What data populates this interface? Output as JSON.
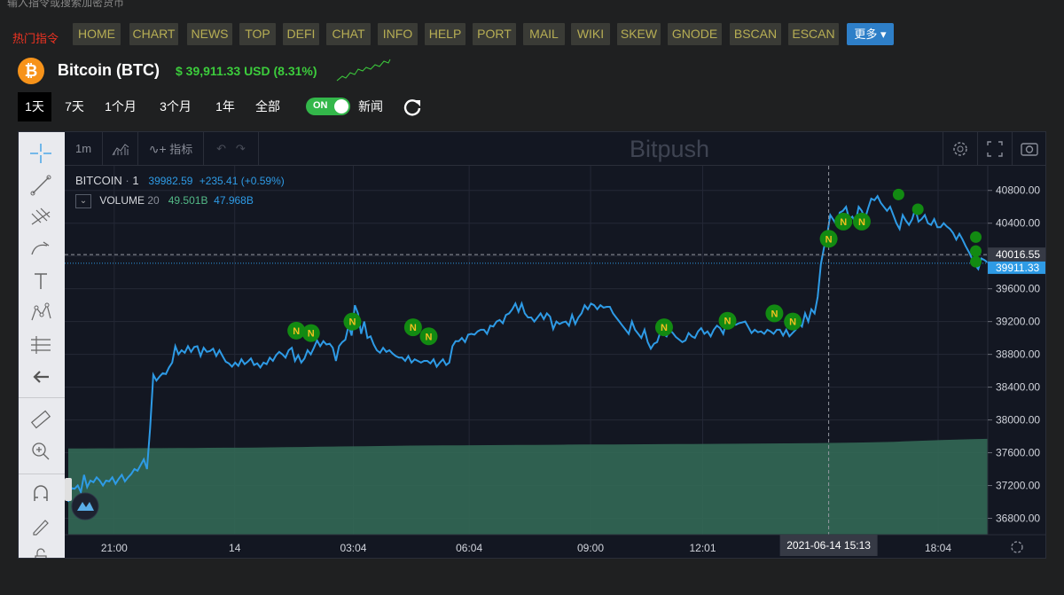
{
  "header": {
    "search_hint": "输入指令或搜索加密货币",
    "hot_label": "热门指令",
    "nav_items": [
      "HOME",
      "CHART",
      "NEWS",
      "TOP",
      "DEFI",
      "CHAT",
      "INFO",
      "HELP",
      "PORT",
      "MAIL",
      "WIKI",
      "SKEW",
      "GNODE",
      "BSCAN",
      "ESCAN"
    ],
    "more_label": "更多 ▾"
  },
  "coin": {
    "logo": "₿",
    "name": "Bitcoin (BTC)",
    "price_line": "$ 39,911.33 USD (8.31%)",
    "colors": {
      "up": "#3ccc3c",
      "logo": "#f7931a"
    }
  },
  "ranges": {
    "items": [
      "1天",
      "7天",
      "1个月",
      "3个月",
      "1年",
      "全部"
    ],
    "active_index": 0,
    "toggle_label": "ON",
    "toggle_state": "on",
    "news_label": "新闻"
  },
  "chart_toolbar": {
    "interval": "1m",
    "indicators_label": "指标",
    "watermark": "Bitpush"
  },
  "legend": {
    "symbol": "BITCOIN",
    "interval": "1",
    "last": "39982.59",
    "change": "+235.41 (+0.59%)",
    "volume_label": "VOLUME",
    "volume_length": "20",
    "volume_value": "49.501B",
    "volume_ma": "47.968B"
  },
  "price_labels": {
    "crosshair_price": "40016.55",
    "last_price": "39911.33",
    "crosshair_time": "2021-06-14    15:13"
  },
  "chart_data": {
    "type": "line",
    "title": "",
    "xlabel": "",
    "ylabel": "",
    "ylim": [
      36600,
      41100
    ],
    "yticks": [
      36800,
      37200,
      37600,
      38000,
      38400,
      38800,
      39200,
      39600,
      40000,
      40400,
      40800
    ],
    "ytick_labels": [
      "36800.00",
      "37200.00",
      "37600.00",
      "38000.00",
      "38400.00",
      "38800.00",
      "39200.00",
      "39600.00",
      "40000.00",
      "40400.00",
      "40800.00"
    ],
    "xticks": [
      {
        "label": "21:00",
        "t": 0.05
      },
      {
        "label": "14",
        "t": 0.181
      },
      {
        "label": "03:04",
        "t": 0.31
      },
      {
        "label": "06:04",
        "t": 0.436
      },
      {
        "label": "09:00",
        "t": 0.568
      },
      {
        "label": "12:01",
        "t": 0.69
      },
      {
        "label": "18:04",
        "t": 0.946
      }
    ],
    "grid": true,
    "series": [
      {
        "color": "#2e9be6",
        "values": [
          37000,
          37170,
          37160,
          37200,
          37120,
          37330,
          37180,
          37260,
          37240,
          37300,
          37260,
          37200,
          37260,
          37250,
          37300,
          37220,
          37280,
          37330,
          37250,
          37300,
          37340,
          37400,
          37380,
          37450,
          37520,
          37400,
          37900,
          38550,
          38480,
          38530,
          38570,
          38560,
          38640,
          38700,
          38900,
          38800,
          38850,
          38820,
          38900,
          38830,
          38890,
          38900,
          38780,
          38880,
          38830,
          38840,
          38870,
          38780,
          38850,
          38780,
          38710,
          38690,
          38650,
          38700,
          38660,
          38740,
          38680,
          38710,
          38750,
          38670,
          38690,
          38640,
          38700,
          38680,
          38760,
          38720,
          38790,
          38830,
          38800,
          38760,
          38850,
          38880,
          38720,
          38790,
          38700,
          38750,
          38850,
          38800,
          38880,
          38970,
          38900,
          38960,
          38920,
          38930,
          38880,
          38720,
          38900,
          38950,
          38980,
          39150,
          39030,
          39400,
          39300,
          39050,
          39200,
          39000,
          39020,
          38920,
          38850,
          38820,
          38880,
          38830,
          38850,
          38810,
          38780,
          38760,
          38760,
          38720,
          38780,
          38700,
          38740,
          38720,
          38700,
          38720,
          38720,
          38690,
          38740,
          38650,
          38700,
          38740,
          38670,
          38700,
          38900,
          38960,
          38960,
          39000,
          38950,
          39040,
          39050,
          39040,
          39080,
          39100,
          39100,
          39050,
          39150,
          39140,
          39200,
          39220,
          39180,
          39280,
          39300,
          39350,
          39420,
          39320,
          39420,
          39300,
          39250,
          39250,
          39200,
          39250,
          39300,
          39230,
          39300,
          39260,
          39110,
          39200,
          39170,
          39190,
          39200,
          39150,
          39280,
          39170,
          39250,
          39300,
          39400,
          39350,
          39420,
          39400,
          39350,
          39400,
          39370,
          39380,
          39380,
          39300,
          39250,
          39200,
          39150,
          39100,
          39050,
          39200,
          39100,
          39050,
          39000,
          39100,
          38950,
          38870,
          38930,
          38950,
          39070,
          39050,
          39020,
          39100,
          39060,
          39010,
          38980,
          38950,
          38970,
          39060,
          39020,
          39000,
          39080,
          39120,
          39050,
          39080,
          39020,
          39100,
          39150,
          39120,
          39050,
          39200,
          39130,
          39200,
          39160,
          39180,
          39190,
          39200,
          39130,
          39060,
          39100,
          39070,
          39080,
          39050,
          39100,
          39080,
          39050,
          39100,
          39100,
          39030,
          39100,
          39020,
          39060,
          39100,
          39180,
          39140,
          39300,
          39200,
          39350,
          39300,
          39500,
          39900,
          40100,
          40260,
          40500,
          40440,
          40380,
          40530,
          40550,
          40600,
          40450,
          40480,
          40400,
          40600,
          40550,
          40450,
          40580,
          40700,
          40680,
          40730,
          40650,
          40600,
          40550,
          40600,
          40500,
          40400,
          40330,
          40500,
          40430,
          40380,
          40450,
          40580,
          40420,
          40450,
          40500,
          40400,
          40380,
          40450,
          40350,
          40350,
          40400,
          40360,
          40330,
          40280,
          40200,
          40270,
          40200,
          40120,
          40050,
          39970,
          39890,
          39840,
          39970,
          39950,
          39920
        ]
      }
    ],
    "volume": {
      "color": "#336855",
      "values_billions": [
        44.5,
        44.55,
        44.6,
        44.6,
        44.65,
        44.7,
        44.7,
        44.75,
        44.8,
        44.85,
        44.9,
        44.9,
        45.0,
        45.1,
        45.2,
        45.3,
        45.4,
        45.5,
        45.6,
        45.7,
        45.8,
        45.9,
        46.0,
        46.05,
        46.1,
        46.15,
        46.2,
        46.25,
        46.3,
        46.35,
        46.4,
        46.45,
        46.5,
        46.55,
        46.6,
        46.6,
        46.65,
        46.7,
        46.75,
        46.8,
        46.85,
        46.9,
        46.95,
        47.0,
        47.05,
        47.1,
        47.15,
        47.2,
        47.3,
        47.4,
        47.5,
        47.6,
        47.8,
        48.0,
        48.3,
        48.6,
        48.9,
        49.1,
        49.3,
        49.5
      ]
    },
    "news_markers": [
      {
        "t": 0.248,
        "value": 39090,
        "label": "N"
      },
      {
        "t": 0.264,
        "value": 39060,
        "label": "N"
      },
      {
        "t": 0.309,
        "value": 39200,
        "label": "N"
      },
      {
        "t": 0.375,
        "value": 39130,
        "label": "N"
      },
      {
        "t": 0.392,
        "value": 39020,
        "label": "N"
      },
      {
        "t": 0.648,
        "value": 39130,
        "label": "N"
      },
      {
        "t": 0.717,
        "value": 39210,
        "label": "N"
      },
      {
        "t": 0.768,
        "value": 39300,
        "label": "N"
      },
      {
        "t": 0.788,
        "value": 39200,
        "label": "N"
      },
      {
        "t": 0.827,
        "value": 40210,
        "label": "N"
      },
      {
        "t": 0.843,
        "value": 40420,
        "label": "N"
      },
      {
        "t": 0.863,
        "value": 40420,
        "label": "N"
      },
      {
        "t": 0.903,
        "value": 40750,
        "label": ""
      },
      {
        "t": 0.924,
        "value": 40570,
        "label": ""
      },
      {
        "t": 0.987,
        "value": 40230,
        "label": ""
      },
      {
        "t": 0.987,
        "value": 40060,
        "label": ""
      },
      {
        "t": 0.987,
        "value": 39930,
        "label": ""
      }
    ],
    "crosshair_t": 0.827
  }
}
